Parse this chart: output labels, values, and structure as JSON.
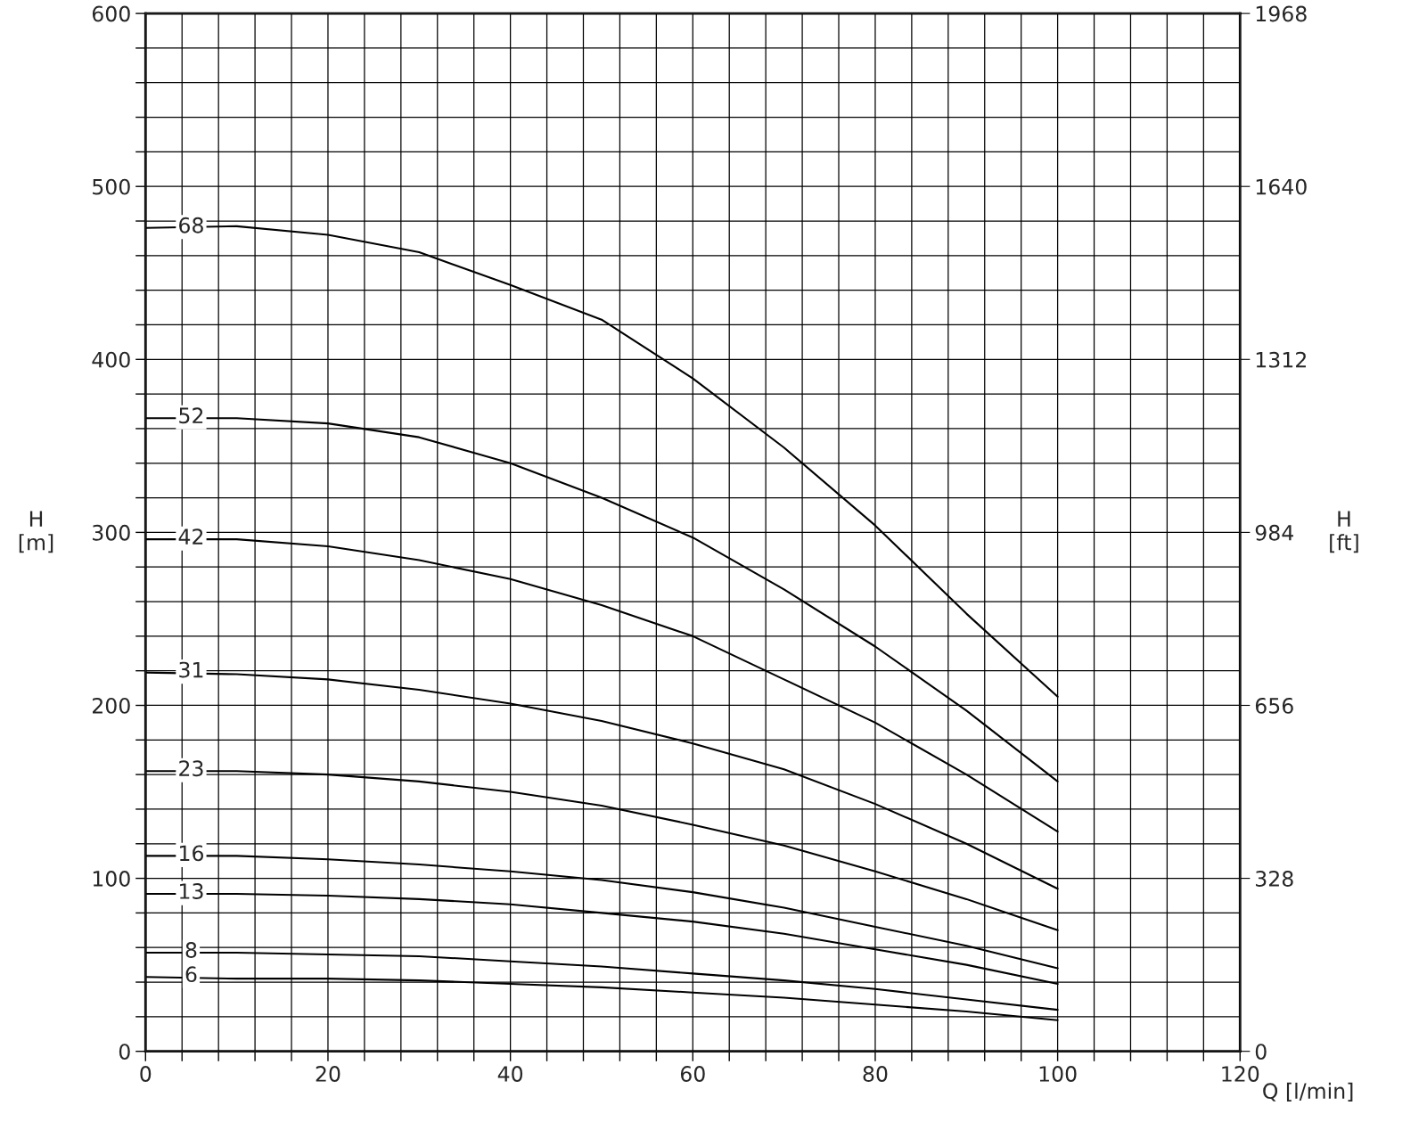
{
  "chart_data": {
    "type": "line",
    "xlabel": "Q [l/min]",
    "ylabel": "H\n[m]",
    "y2label": "H\n[ft]",
    "x": [
      0,
      10,
      20,
      30,
      40,
      50,
      60,
      70,
      80,
      90,
      100
    ],
    "xlim": [
      0,
      120
    ],
    "ylim": [
      0,
      600
    ],
    "y2lim": [
      0,
      1968
    ],
    "xticks": [
      0,
      {
        "value": 4,
        "label": null
      },
      {
        "value": 8,
        "label": null
      },
      {
        "value": 12,
        "label": null
      },
      {
        "value": 16,
        "label": null
      },
      20,
      {
        "value": 24,
        "label": null
      },
      {
        "value": 28,
        "label": null
      },
      {
        "value": 32,
        "label": null
      },
      {
        "value": 36,
        "label": null
      },
      40,
      {
        "value": 44,
        "label": null
      },
      {
        "value": 48,
        "label": null
      },
      {
        "value": 52,
        "label": null
      },
      {
        "value": 56,
        "label": null
      },
      60,
      {
        "value": 64,
        "label": null
      },
      {
        "value": 68,
        "label": null
      },
      {
        "value": 72,
        "label": null
      },
      {
        "value": 76,
        "label": null
      },
      80,
      {
        "value": 84,
        "label": null
      },
      {
        "value": 88,
        "label": null
      },
      {
        "value": 92,
        "label": null
      },
      {
        "value": 96,
        "label": null
      },
      100,
      {
        "value": 104,
        "label": null
      },
      {
        "value": 108,
        "label": null
      },
      {
        "value": 112,
        "label": null
      },
      {
        "value": 116,
        "label": null
      },
      120
    ],
    "yticks": [
      0,
      {
        "value": 20,
        "label": null
      },
      {
        "value": 40,
        "label": null
      },
      {
        "value": 60,
        "label": null
      },
      {
        "value": 80,
        "label": null
      },
      100,
      {
        "value": 120,
        "label": null
      },
      {
        "value": 140,
        "label": null
      },
      {
        "value": 160,
        "label": null
      },
      {
        "value": 180,
        "label": null
      },
      200,
      {
        "value": 220,
        "label": null
      },
      {
        "value": 240,
        "label": null
      },
      {
        "value": 260,
        "label": null
      },
      {
        "value": 280,
        "label": null
      },
      300,
      {
        "value": 320,
        "label": null
      },
      {
        "value": 340,
        "label": null
      },
      {
        "value": 360,
        "label": null
      },
      {
        "value": 380,
        "label": null
      },
      400,
      {
        "value": 420,
        "label": null
      },
      {
        "value": 440,
        "label": null
      },
      {
        "value": 460,
        "label": null
      },
      {
        "value": 480,
        "label": null
      },
      500,
      {
        "value": 520,
        "label": null
      },
      {
        "value": 540,
        "label": null
      },
      {
        "value": 560,
        "label": null
      },
      {
        "value": 580,
        "label": null
      },
      600
    ],
    "y2ticks": [
      0,
      328,
      656,
      984,
      1312,
      1640,
      1968
    ],
    "grid": true,
    "marker": "none",
    "line_style": "solid",
    "legend": false,
    "series": [
      {
        "name": "68",
        "color": "#000000",
        "values": [
          476,
          477,
          472,
          462,
          443,
          423,
          389,
          349,
          304,
          253,
          205
        ]
      },
      {
        "name": "52",
        "color": "#000000",
        "values": [
          366,
          366,
          363,
          355,
          340,
          320,
          297,
          267,
          234,
          197,
          156
        ]
      },
      {
        "name": "42",
        "color": "#000000",
        "values": [
          296,
          296,
          292,
          284,
          273,
          258,
          240,
          215,
          190,
          160,
          127
        ]
      },
      {
        "name": "31",
        "color": "#000000",
        "values": [
          219,
          218,
          215,
          209,
          201,
          191,
          178,
          163,
          143,
          120,
          94
        ]
      },
      {
        "name": "23",
        "color": "#000000",
        "values": [
          162,
          162,
          160,
          156,
          150,
          142,
          131,
          119,
          104,
          88,
          70
        ]
      },
      {
        "name": "16",
        "color": "#000000",
        "values": [
          113,
          113,
          111,
          108,
          104,
          99,
          92,
          83,
          72,
          61,
          48
        ]
      },
      {
        "name": "13",
        "color": "#000000",
        "values": [
          91,
          91,
          90,
          88,
          85,
          80,
          75,
          68,
          59,
          50,
          39
        ]
      },
      {
        "name": "8",
        "color": "#000000",
        "values": [
          57,
          57,
          56,
          55,
          52,
          49,
          45,
          41,
          36,
          30,
          24
        ]
      },
      {
        "name": "6",
        "color": "#000000",
        "values": [
          43,
          42,
          42,
          41,
          39,
          37,
          34,
          31,
          27,
          23,
          18
        ]
      }
    ]
  }
}
